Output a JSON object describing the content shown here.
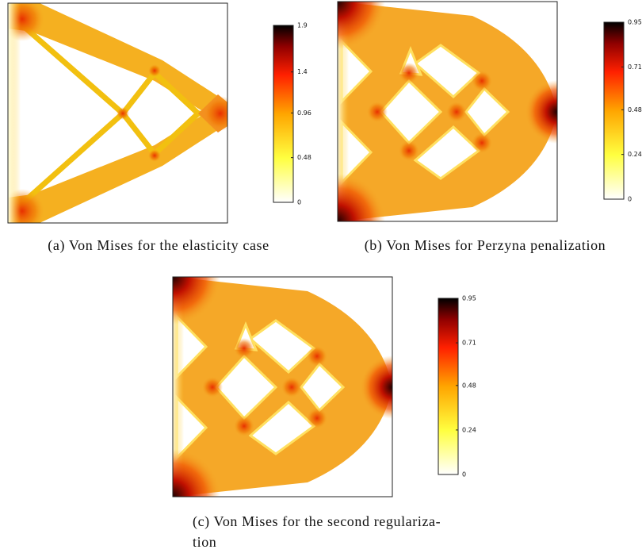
{
  "panels": [
    {
      "caption": [
        "(a) Von Mises for the elasticity case"
      ],
      "colorbar": {
        "lim": [
          0,
          1.9
        ],
        "ticks": [
          0,
          0.48,
          0.96,
          1.4,
          1.9
        ]
      }
    },
    {
      "caption": [
        "(b) Von Mises for Perzyna penalization"
      ],
      "colorbar": {
        "lim": [
          0,
          0.95
        ],
        "ticks": [
          0,
          0.24,
          0.48,
          0.71,
          0.95
        ]
      }
    },
    {
      "caption": [
        "(c) Von Mises for the second regulariza-",
        "tion"
      ],
      "colorbar": {
        "lim": [
          0,
          0.95
        ],
        "ticks": [
          0,
          0.24,
          0.48,
          0.71,
          0.95
        ]
      }
    }
  ]
}
